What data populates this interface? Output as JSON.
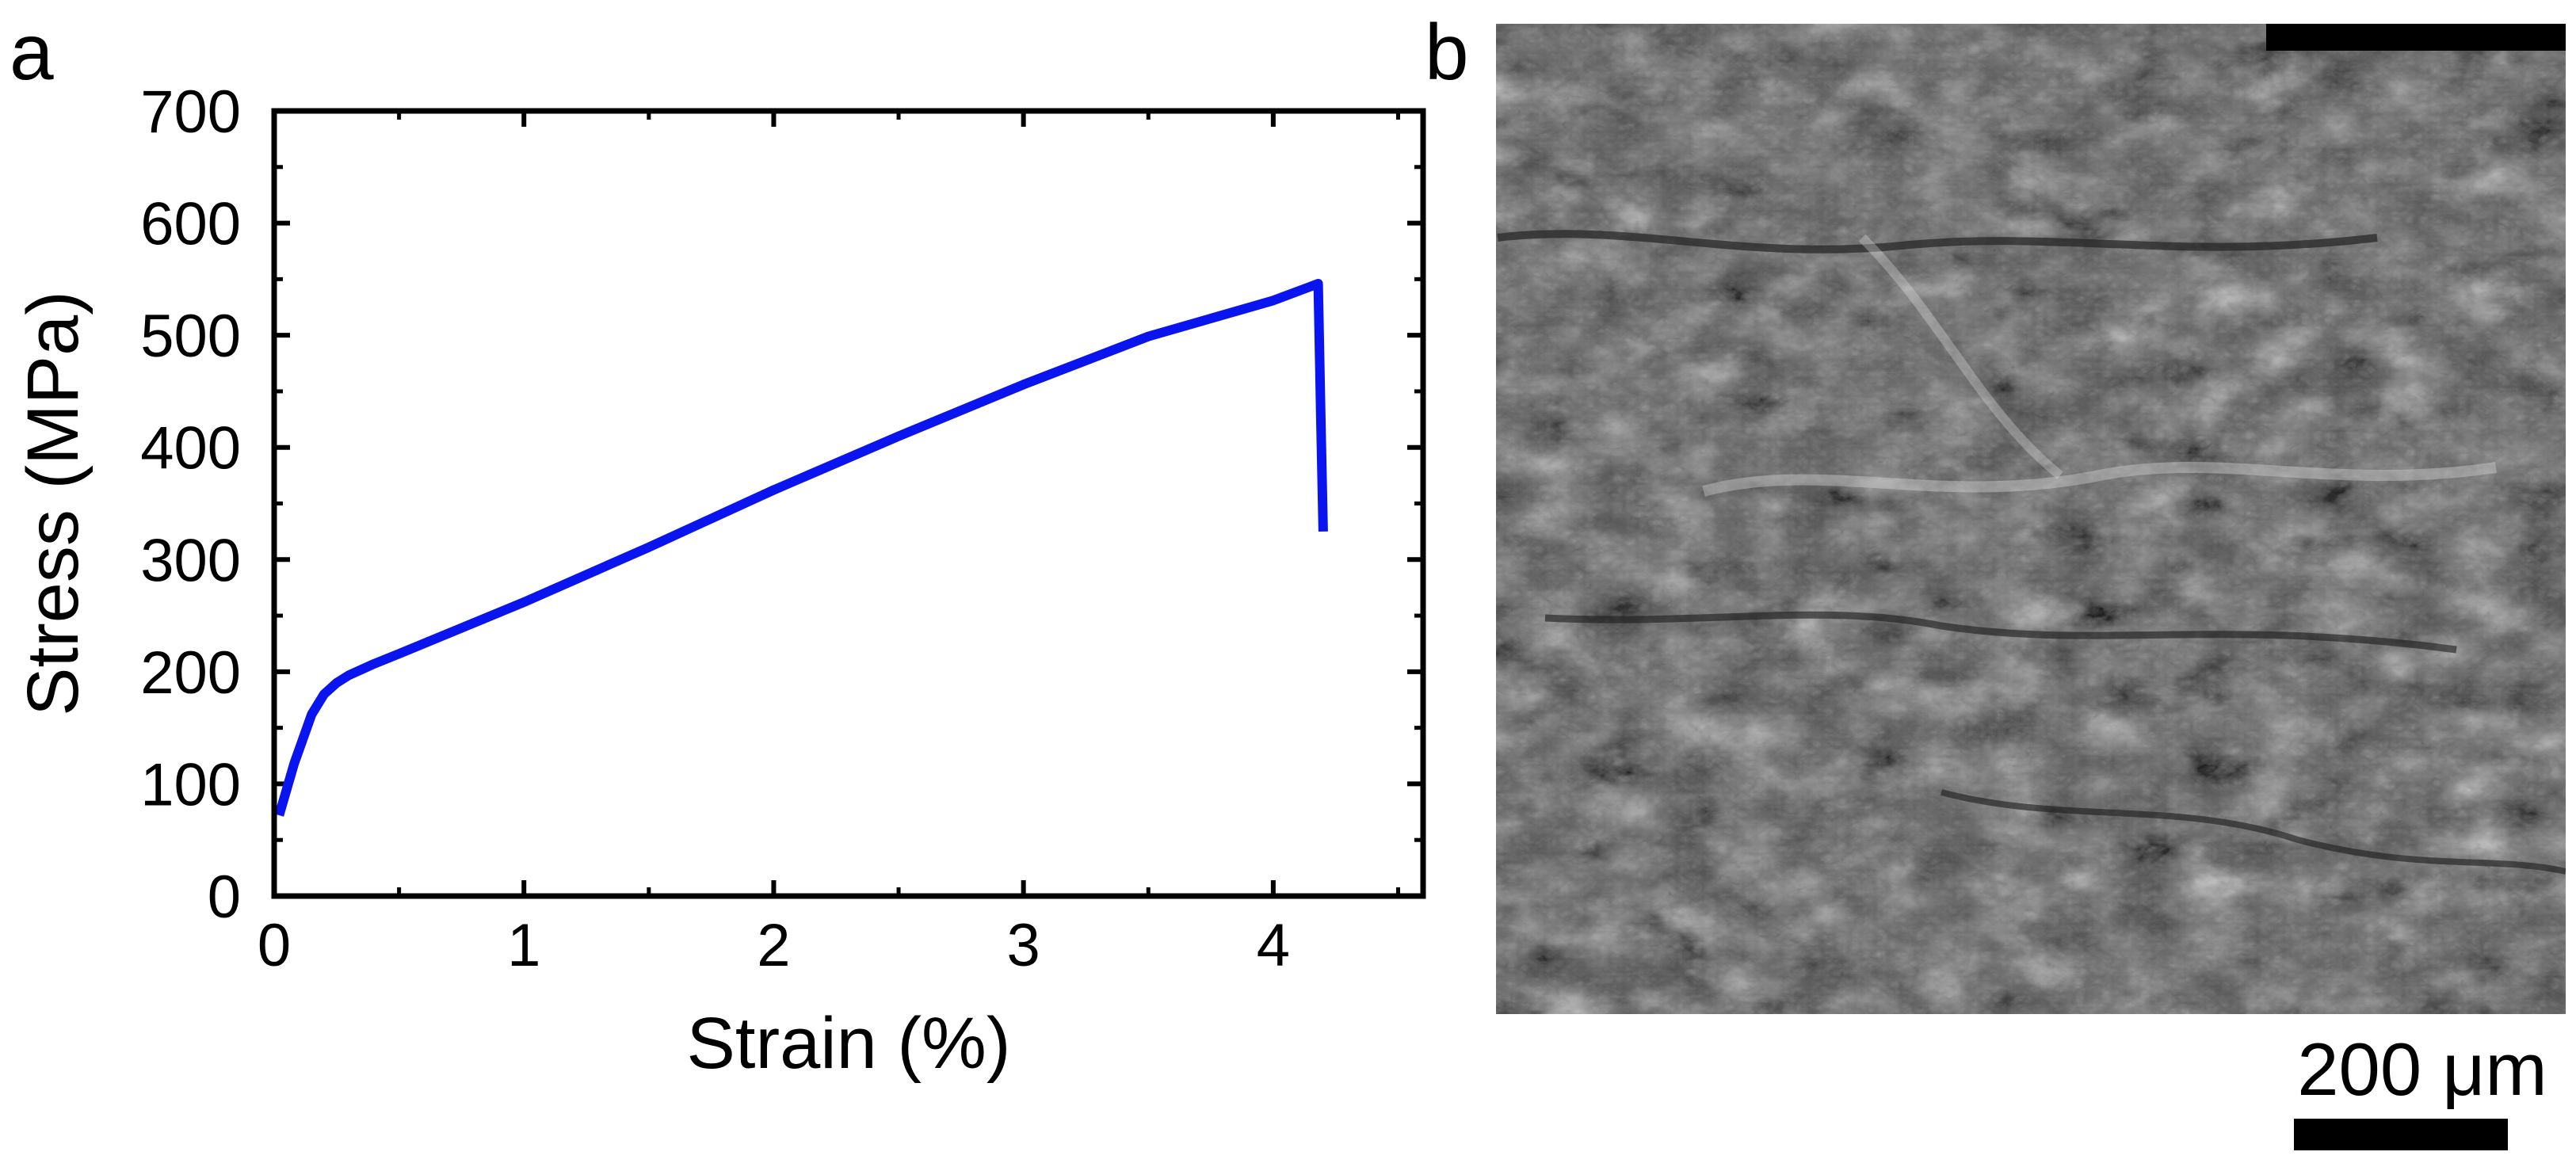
{
  "panels": {
    "a": "a",
    "b": "b"
  },
  "chart_data": {
    "type": "line",
    "title": "",
    "xlabel": "Strain (%)",
    "ylabel": "Stress (MPa)",
    "xlim": [
      0,
      4.6
    ],
    "ylim": [
      0,
      700
    ],
    "x_ticks": [
      0,
      1,
      2,
      3,
      4
    ],
    "y_ticks": [
      0,
      100,
      200,
      300,
      400,
      500,
      600,
      700
    ],
    "x_minor_step": 0.5,
    "y_minor_step": 50,
    "grid": false,
    "legend": "none",
    "series": [
      {
        "color": "#0a14ee",
        "x": [
          0.02,
          0.08,
          0.15,
          0.2,
          0.25,
          0.3,
          0.4,
          0.5,
          1.0,
          1.5,
          2.0,
          2.5,
          3.0,
          3.5,
          4.0,
          4.18,
          4.19,
          4.2
        ],
        "y": [
          72,
          118,
          162,
          180,
          190,
          197,
          207,
          216,
          262,
          311,
          362,
          410,
          456,
          499,
          531,
          546,
          430,
          325
        ]
      }
    ]
  },
  "micrograph": {
    "scale_bar_label": "200 μm",
    "image_tone": "grayscale SEM fracture surface"
  }
}
